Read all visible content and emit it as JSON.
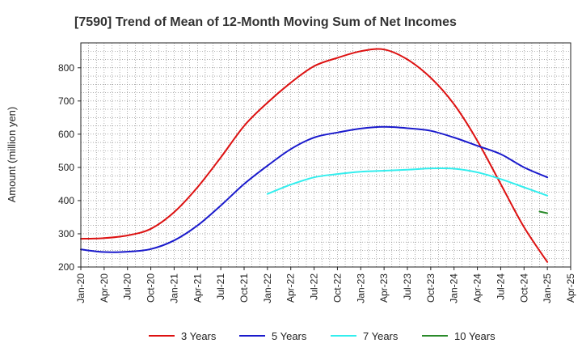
{
  "chart_data": {
    "type": "line",
    "title": "[7590]  Trend of Mean of 12-Month Moving Sum of Net Incomes",
    "ylabel": "Amount (million yen)",
    "xlabel": "",
    "ylim": [
      200,
      875
    ],
    "yticks": [
      "200",
      "300",
      "400",
      "500",
      "600",
      "700",
      "800"
    ],
    "xlim": [
      "2020-01",
      "2025-04"
    ],
    "xtick_labels": [
      "Jan-20",
      "Apr-20",
      "Jul-20",
      "Oct-20",
      "Jan-21",
      "Apr-21",
      "Jul-21",
      "Oct-21",
      "Jan-22",
      "Apr-22",
      "Jul-22",
      "Oct-22",
      "Jan-23",
      "Apr-23",
      "Jul-23",
      "Oct-23",
      "Jan-24",
      "Apr-24",
      "Jul-24",
      "Oct-24",
      "Jan-25",
      "Apr-25"
    ],
    "grid": true,
    "legend_position": "bottom",
    "series": [
      {
        "name": "3 Years",
        "color": "#dd1111",
        "x": [
          "2020-01",
          "2020-04",
          "2020-07",
          "2020-10",
          "2021-01",
          "2021-04",
          "2021-07",
          "2021-10",
          "2022-01",
          "2022-04",
          "2022-07",
          "2022-10",
          "2023-01",
          "2023-04",
          "2023-07",
          "2023-10",
          "2024-01",
          "2024-04",
          "2024-07",
          "2024-10",
          "2025-01"
        ],
        "y": [
          285,
          287,
          295,
          315,
          365,
          440,
          530,
          625,
          695,
          755,
          805,
          830,
          850,
          855,
          825,
          770,
          690,
          580,
          450,
          320,
          215
        ]
      },
      {
        "name": "5 Years",
        "color": "#1a1acc",
        "x": [
          "2020-01",
          "2020-04",
          "2020-07",
          "2020-10",
          "2021-01",
          "2021-04",
          "2021-07",
          "2021-10",
          "2022-01",
          "2022-04",
          "2022-07",
          "2022-10",
          "2023-01",
          "2023-04",
          "2023-07",
          "2023-10",
          "2024-01",
          "2024-04",
          "2024-07",
          "2024-10",
          "2025-01"
        ],
        "y": [
          253,
          245,
          246,
          254,
          280,
          325,
          385,
          450,
          505,
          555,
          590,
          605,
          617,
          622,
          618,
          610,
          590,
          565,
          540,
          500,
          470
        ]
      },
      {
        "name": "7 Years",
        "color": "#33eeee",
        "x": [
          "2022-01",
          "2022-04",
          "2022-07",
          "2022-10",
          "2023-01",
          "2023-04",
          "2023-07",
          "2023-10",
          "2024-01",
          "2024-04",
          "2024-07",
          "2024-10",
          "2025-01"
        ],
        "y": [
          420,
          448,
          470,
          480,
          487,
          490,
          493,
          497,
          496,
          485,
          465,
          440,
          415
        ]
      },
      {
        "name": "10 Years",
        "color": "#2a8a2a",
        "x": [
          "2024-12",
          "2025-01"
        ],
        "y": [
          367,
          362
        ]
      }
    ]
  }
}
